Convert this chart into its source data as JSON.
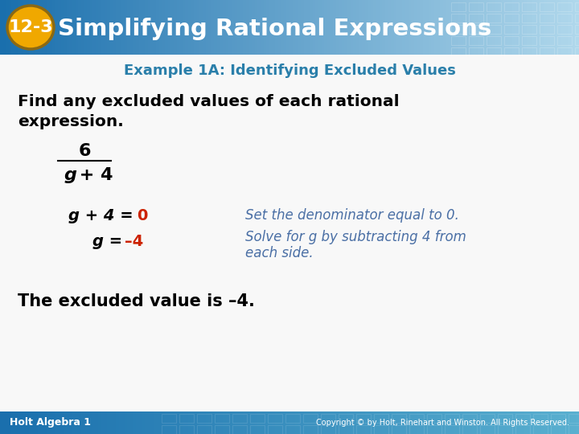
{
  "header_bg_gradient_left": "#1a6fad",
  "header_bg_gradient_right": "#a8d4e8",
  "header_text": "Simplifying Rational Expressions",
  "header_number": "12-3",
  "header_number_bg": "#f0a800",
  "header_number_border": "#8B6914",
  "header_text_color": "#ffffff",
  "example_label": "Example 1A: Identifying Excluded Values",
  "example_label_color": "#2a7faa",
  "body_bg_color": "#f8f8f8",
  "instruction_line1": "Find any excluded values of each rational",
  "instruction_line2": "expression.",
  "instruction_color": "#000000",
  "numerator": "6",
  "denominator_italic": "g",
  "denominator_normal": " + 4",
  "eq1_black": "g + 4 = ",
  "eq1_red": "0",
  "eq1_red_color": "#cc2200",
  "eq2_black": "g = ",
  "eq2_red": "–4",
  "eq2_red_color": "#cc2200",
  "note1": "Set the denominator equal to 0.",
  "note2_line1": "Solve for g by subtracting 4 from",
  "note2_line2": "each side.",
  "note_color": "#4a6fa5",
  "conclusion": "The excluded value is –4.",
  "conclusion_color": "#000000",
  "footer_left": "Holt Algebra 1",
  "footer_right": "Copyright © by Holt, Rinehart and Winston. All Rights Reserved.",
  "footer_color": "#ffffff",
  "footer_bg_left": "#1a6fad",
  "footer_bg_right": "#5ab0d0"
}
